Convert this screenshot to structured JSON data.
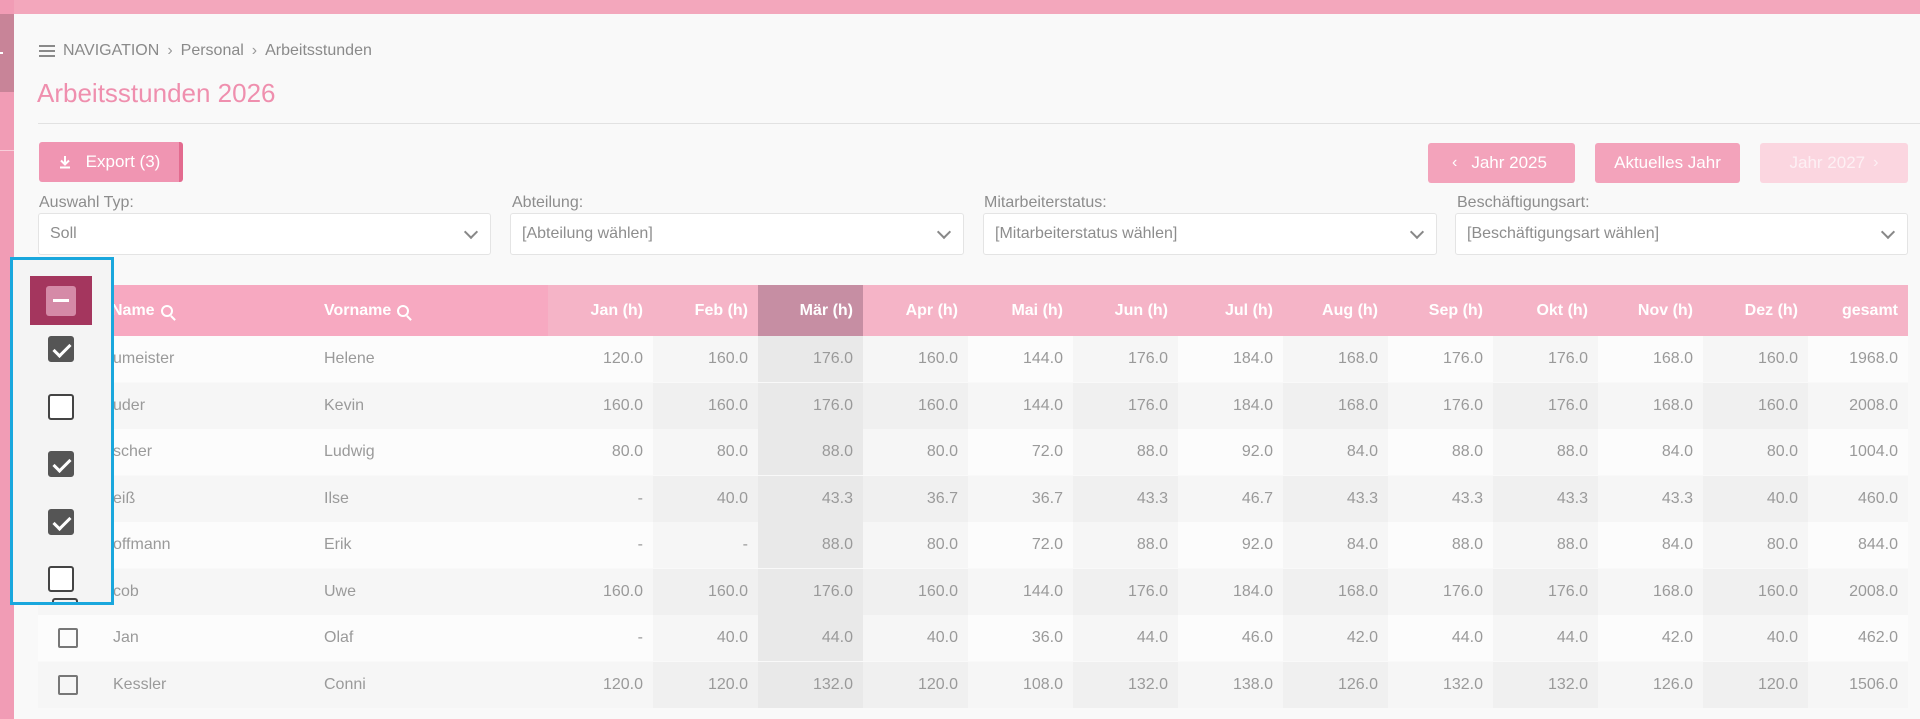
{
  "breadcrumb": {
    "nav": "NAVIGATION",
    "level1": "Personal",
    "level2": "Arbeitsstunden"
  },
  "page": {
    "title": "Arbeitsstunden 2026"
  },
  "toolbar": {
    "export_label": "Export (3)",
    "prev_year_label": "Jahr 2025",
    "current_year_label": "Aktuelles Jahr",
    "next_year_label": "Jahr 2027"
  },
  "filters": {
    "type_label": "Auswahl Typ:",
    "type_value": "Soll",
    "department_label": "Abteilung:",
    "department_value": "[Abteilung wählen]",
    "status_label": "Mitarbeiterstatus:",
    "status_value": "[Mitarbeiterstatus wählen]",
    "employment_label": "Beschäftigungsart:",
    "employment_value": "[Beschäftigungsart wählen]"
  },
  "table": {
    "columns": [
      "Name",
      "Vorname",
      "Jan (h)",
      "Feb (h)",
      "Mär (h)",
      "Apr (h)",
      "Mai (h)",
      "Jun (h)",
      "Jul (h)",
      "Aug (h)",
      "Sep (h)",
      "Okt (h)",
      "Nov (h)",
      "Dez (h)",
      "gesamt"
    ],
    "rows": [
      {
        "checked": true,
        "name": "umeister",
        "vorname": "Helene",
        "values": [
          "120.0",
          "160.0",
          "176.0",
          "160.0",
          "144.0",
          "176.0",
          "184.0",
          "168.0",
          "176.0",
          "176.0",
          "168.0",
          "160.0",
          "1968.0"
        ]
      },
      {
        "checked": false,
        "name": "uder",
        "vorname": "Kevin",
        "values": [
          "160.0",
          "160.0",
          "176.0",
          "160.0",
          "144.0",
          "176.0",
          "184.0",
          "168.0",
          "176.0",
          "176.0",
          "168.0",
          "160.0",
          "2008.0"
        ]
      },
      {
        "checked": true,
        "name": "scher",
        "vorname": "Ludwig",
        "values": [
          "80.0",
          "80.0",
          "88.0",
          "80.0",
          "72.0",
          "88.0",
          "92.0",
          "84.0",
          "88.0",
          "88.0",
          "84.0",
          "80.0",
          "1004.0"
        ]
      },
      {
        "checked": true,
        "name": "eiß",
        "vorname": "Ilse",
        "values": [
          "-",
          "40.0",
          "43.3",
          "36.7",
          "36.7",
          "43.3",
          "46.7",
          "43.3",
          "43.3",
          "43.3",
          "43.3",
          "40.0",
          "460.0"
        ]
      },
      {
        "checked": false,
        "name": "offmann",
        "vorname": "Erik",
        "values": [
          "-",
          "-",
          "88.0",
          "80.0",
          "72.0",
          "88.0",
          "92.0",
          "84.0",
          "88.0",
          "88.0",
          "84.0",
          "80.0",
          "844.0"
        ]
      },
      {
        "checked": false,
        "name": "cob",
        "vorname": "Uwe",
        "values": [
          "160.0",
          "160.0",
          "176.0",
          "160.0",
          "144.0",
          "176.0",
          "184.0",
          "168.0",
          "176.0",
          "176.0",
          "168.0",
          "160.0",
          "2008.0"
        ]
      },
      {
        "checked": false,
        "name": "Jan",
        "vorname": "Olaf",
        "values": [
          "-",
          "40.0",
          "44.0",
          "40.0",
          "36.0",
          "44.0",
          "46.0",
          "42.0",
          "44.0",
          "44.0",
          "42.0",
          "40.0",
          "462.0"
        ]
      },
      {
        "checked": false,
        "name": "Kessler",
        "vorname": "Conni",
        "values": [
          "120.0",
          "120.0",
          "132.0",
          "120.0",
          "108.0",
          "132.0",
          "138.0",
          "126.0",
          "132.0",
          "132.0",
          "126.0",
          "120.0",
          "1506.0"
        ]
      }
    ]
  },
  "colors": {
    "accent": "#f095b2",
    "header": "#f7a9c1",
    "header_dark": "#a4365e",
    "highlight": "#1aa7dd"
  }
}
